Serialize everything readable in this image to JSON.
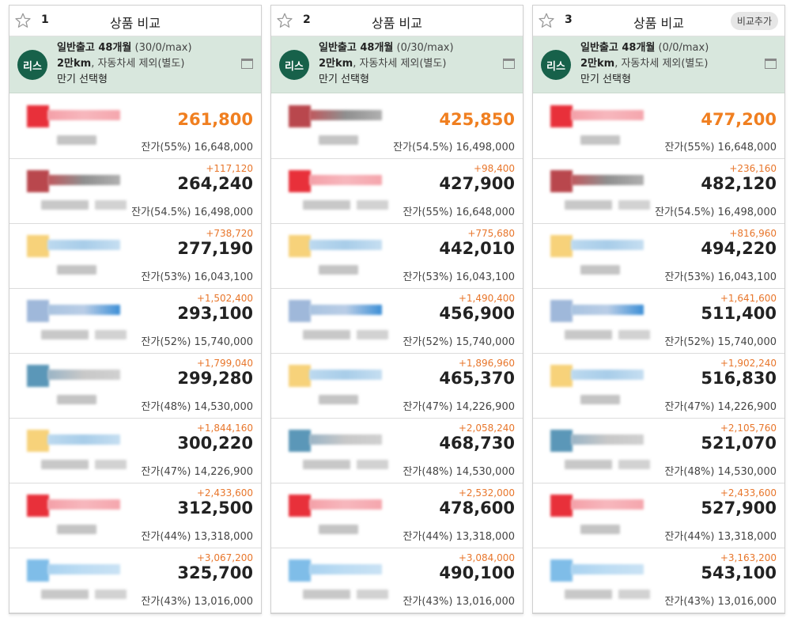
{
  "columns": [
    {
      "num": "1",
      "title": "상품 비교",
      "add_button": "",
      "summary": {
        "badge": "리스",
        "line1_bold": "일반출고 48개월",
        "line1_light": " (30/0/max)",
        "line2_bold": "2만km",
        "line2_light": ", 자동차세 제외(별도)",
        "line3": "만기 선택형"
      },
      "rows": [
        {
          "diff": "",
          "price": "261,800",
          "residual": "잔가(55%) 16,648,000",
          "best": true,
          "tint": "red"
        },
        {
          "diff": "+117,120",
          "price": "264,240",
          "residual": "잔가(54.5%) 16,498,000",
          "best": false,
          "tint": "darkred"
        },
        {
          "diff": "+738,720",
          "price": "277,190",
          "residual": "잔가(53%) 16,043,100",
          "best": false,
          "tint": "yellowblue"
        },
        {
          "diff": "+1,502,400",
          "price": "293,100",
          "residual": "잔가(52%) 15,740,000",
          "best": false,
          "tint": "blue"
        },
        {
          "diff": "+1,799,040",
          "price": "299,280",
          "residual": "잔가(48%) 14,530,000",
          "best": false,
          "tint": "teal"
        },
        {
          "diff": "+1,844,160",
          "price": "300,220",
          "residual": "잔가(47%) 14,226,900",
          "best": false,
          "tint": "yellowblue"
        },
        {
          "diff": "+2,433,600",
          "price": "312,500",
          "residual": "잔가(44%) 13,318,000",
          "best": false,
          "tint": "red"
        },
        {
          "diff": "+3,067,200",
          "price": "325,700",
          "residual": "잔가(43%) 13,016,000",
          "best": false,
          "tint": "lightblue"
        }
      ]
    },
    {
      "num": "2",
      "title": "상품 비교",
      "add_button": "",
      "summary": {
        "badge": "리스",
        "line1_bold": "일반출고 48개월",
        "line1_light": " (0/30/max)",
        "line2_bold": "2만km",
        "line2_light": ", 자동차세 제외(별도)",
        "line3": "만기 선택형"
      },
      "rows": [
        {
          "diff": "",
          "price": "425,850",
          "residual": "잔가(54.5%) 16,498,000",
          "best": true,
          "tint": "darkred"
        },
        {
          "diff": "+98,400",
          "price": "427,900",
          "residual": "잔가(55%) 16,648,000",
          "best": false,
          "tint": "red"
        },
        {
          "diff": "+775,680",
          "price": "442,010",
          "residual": "잔가(53%) 16,043,100",
          "best": false,
          "tint": "yellowblue"
        },
        {
          "diff": "+1,490,400",
          "price": "456,900",
          "residual": "잔가(52%) 15,740,000",
          "best": false,
          "tint": "blue"
        },
        {
          "diff": "+1,896,960",
          "price": "465,370",
          "residual": "잔가(47%) 14,226,900",
          "best": false,
          "tint": "yellowblue"
        },
        {
          "diff": "+2,058,240",
          "price": "468,730",
          "residual": "잔가(48%) 14,530,000",
          "best": false,
          "tint": "teal"
        },
        {
          "diff": "+2,532,000",
          "price": "478,600",
          "residual": "잔가(44%) 13,318,000",
          "best": false,
          "tint": "red"
        },
        {
          "diff": "+3,084,000",
          "price": "490,100",
          "residual": "잔가(43%) 13,016,000",
          "best": false,
          "tint": "lightblue"
        }
      ]
    },
    {
      "num": "3",
      "title": "상품 비교",
      "add_button": "비교추가",
      "summary": {
        "badge": "리스",
        "line1_bold": "일반출고 48개월",
        "line1_light": " (0/0/max)",
        "line2_bold": "2만km",
        "line2_light": ", 자동차세 제외(별도)",
        "line3": "만기 선택형"
      },
      "rows": [
        {
          "diff": "",
          "price": "477,200",
          "residual": "잔가(55%) 16,648,000",
          "best": true,
          "tint": "red"
        },
        {
          "diff": "+236,160",
          "price": "482,120",
          "residual": "잔가(54.5%) 16,498,000",
          "best": false,
          "tint": "darkred"
        },
        {
          "diff": "+816,960",
          "price": "494,220",
          "residual": "잔가(53%) 16,043,100",
          "best": false,
          "tint": "yellowblue"
        },
        {
          "diff": "+1,641,600",
          "price": "511,400",
          "residual": "잔가(52%) 15,740,000",
          "best": false,
          "tint": "blue"
        },
        {
          "diff": "+1,902,240",
          "price": "516,830",
          "residual": "잔가(47%) 14,226,900",
          "best": false,
          "tint": "yellowblue"
        },
        {
          "diff": "+2,105,760",
          "price": "521,070",
          "residual": "잔가(48%) 14,530,000",
          "best": false,
          "tint": "teal"
        },
        {
          "diff": "+2,433,600",
          "price": "527,900",
          "residual": "잔가(44%) 13,318,000",
          "best": false,
          "tint": "red"
        },
        {
          "diff": "+3,163,200",
          "price": "543,100",
          "residual": "잔가(43%) 13,016,000",
          "best": false,
          "tint": "lightblue"
        }
      ]
    }
  ],
  "colors": {
    "accent_orange": "#f07f20",
    "diff_orange": "#e8762b",
    "summary_bg": "#d8e7dd",
    "badge_green": "#17614a"
  },
  "icons": {
    "favorite": "star-outline-icon",
    "memo": "memo-icon"
  }
}
